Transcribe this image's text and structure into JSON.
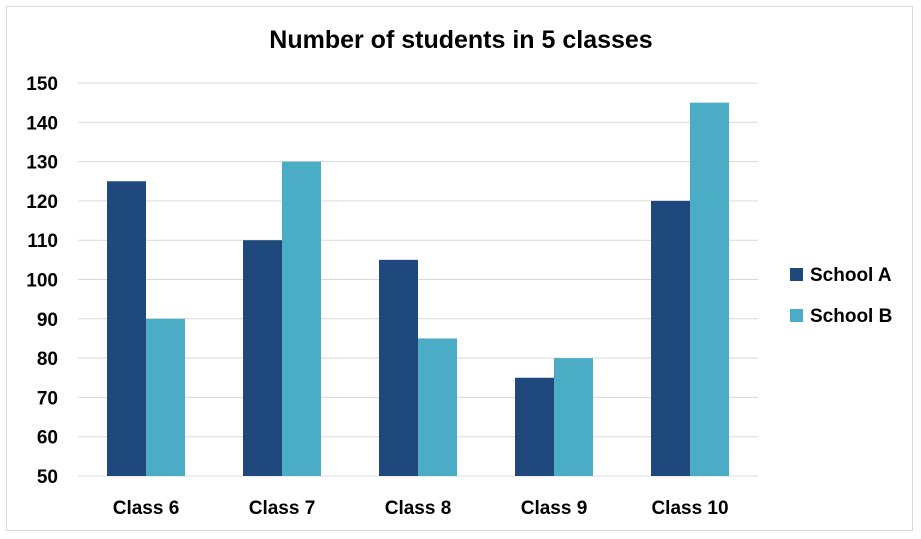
{
  "chart_data": {
    "type": "bar",
    "title": "Number of students in 5 classes",
    "xlabel": "",
    "ylabel": "",
    "categories": [
      "Class 6",
      "Class 7",
      "Class 8",
      "Class 9",
      "Class 10"
    ],
    "series": [
      {
        "name": "School A",
        "values": [
          125,
          110,
          105,
          75,
          120
        ],
        "color": "#1f497d"
      },
      {
        "name": "School B",
        "values": [
          90,
          130,
          85,
          80,
          145
        ],
        "color": "#4bacc6"
      }
    ],
    "ylim": [
      50,
      150
    ],
    "yticks": [
      "50",
      "60",
      "70",
      "80",
      "90",
      "100",
      "110",
      "120",
      "130",
      "140",
      "150"
    ],
    "grid": true,
    "legend": "right",
    "gridColor": "#d9d9d9"
  }
}
